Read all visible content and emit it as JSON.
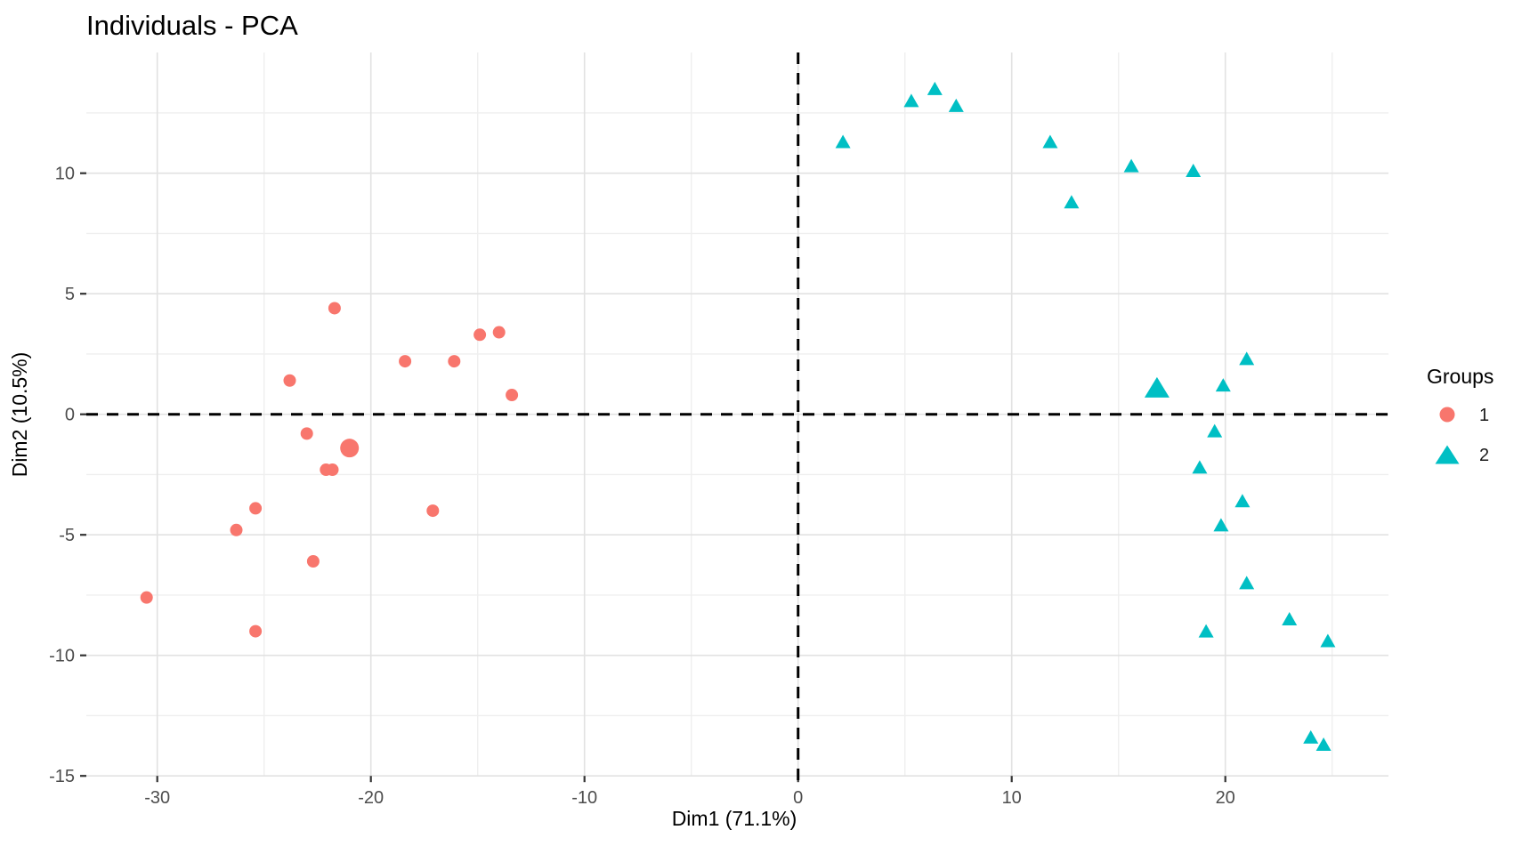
{
  "title": "Individuals - PCA",
  "legend": {
    "title": "Groups",
    "items": [
      {
        "label": "1",
        "shape": "circle",
        "color": "#F8766D"
      },
      {
        "label": "2",
        "shape": "triangle",
        "color": "#00BFC4"
      }
    ]
  },
  "colors": {
    "group1": "#F8766D",
    "group2": "#00BFC4",
    "grid_major": "#e2e2e2",
    "grid_minor": "#efefef",
    "tick_label": "#4d4d4d",
    "reference_line": "#000000",
    "background": "#ffffff"
  },
  "chart_data": {
    "type": "scatter",
    "title": "Individuals - PCA",
    "xlabel": "Dim1 (71.1%)",
    "ylabel": "Dim2 (10.5%)",
    "xlim": [
      -33.3,
      27.6
    ],
    "ylim": [
      -15,
      15
    ],
    "x_ticks": [
      -30,
      -20,
      -10,
      0,
      10,
      20
    ],
    "y_ticks": [
      -15,
      -10,
      -5,
      0,
      5,
      10
    ],
    "x_minor": [
      -25,
      -15,
      -5,
      5,
      15,
      25
    ],
    "y_minor": [
      12.5,
      7.5,
      2.5,
      -2.5,
      -7.5,
      -12.5
    ],
    "grid": true,
    "legend_position": "right",
    "reference_lines": {
      "x": 0,
      "y": 0,
      "style": "dashed"
    },
    "series": [
      {
        "name": "1",
        "marker": "circle",
        "color": "#F8766D",
        "points": [
          [
            -21.7,
            4.4
          ],
          [
            -14.9,
            3.3
          ],
          [
            -14.0,
            3.4
          ],
          [
            -18.4,
            2.2
          ],
          [
            -16.1,
            2.2
          ],
          [
            -23.8,
            1.4
          ],
          [
            -13.4,
            0.8
          ],
          [
            -23.0,
            -0.8
          ],
          [
            -22.1,
            -2.3
          ],
          [
            -21.8,
            -2.3
          ],
          [
            -25.4,
            -3.9
          ],
          [
            -17.1,
            -4.0
          ],
          [
            -26.3,
            -4.8
          ],
          [
            -22.7,
            -6.1
          ],
          [
            -30.5,
            -7.6
          ],
          [
            -25.4,
            -9.0
          ]
        ],
        "mean_point": [
          -21.0,
          -1.4
        ]
      },
      {
        "name": "2",
        "marker": "triangle",
        "color": "#00BFC4",
        "points": [
          [
            2.1,
            11.3
          ],
          [
            5.3,
            13.0
          ],
          [
            6.4,
            13.5
          ],
          [
            7.4,
            12.8
          ],
          [
            11.8,
            11.3
          ],
          [
            12.8,
            8.8
          ],
          [
            15.6,
            10.3
          ],
          [
            18.5,
            10.1
          ],
          [
            21.0,
            2.3
          ],
          [
            19.9,
            1.2
          ],
          [
            19.5,
            -0.7
          ],
          [
            18.8,
            -2.2
          ],
          [
            20.8,
            -3.6
          ],
          [
            19.8,
            -4.6
          ],
          [
            21.0,
            -7.0
          ],
          [
            23.0,
            -8.5
          ],
          [
            19.1,
            -9.0
          ],
          [
            24.8,
            -9.4
          ],
          [
            24.0,
            -13.4
          ],
          [
            24.6,
            -13.7
          ]
        ],
        "mean_point": [
          16.8,
          1.1
        ]
      }
    ]
  }
}
